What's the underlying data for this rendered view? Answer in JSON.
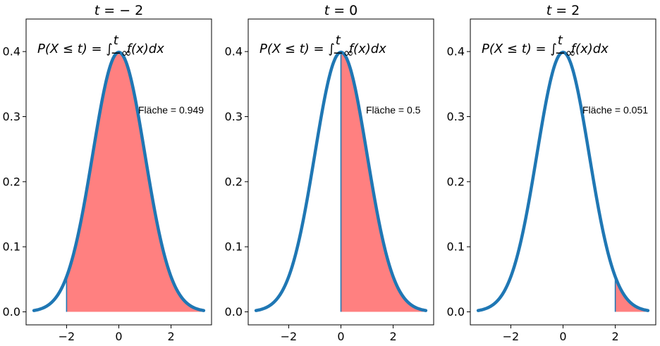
{
  "chart_data": [
    {
      "type": "area",
      "title_prefix": "t = ",
      "title_value": "− 2",
      "t": -2,
      "formula": {
        "lhs": "P(X ≤ t) = ∫",
        "upper": "t",
        "lower": "−∞",
        "rhs": "f(x)dx"
      },
      "area_label": "Fläche = 0.949",
      "shade_side": "right",
      "x_domain": [
        -3.25,
        3.25
      ],
      "xlim": [
        -3.55,
        3.55
      ],
      "ylim": [
        -0.02,
        0.45
      ],
      "xticks": [
        {
          "v": -2,
          "label": "−2"
        },
        {
          "v": 0,
          "label": "0"
        },
        {
          "v": 2,
          "label": "2"
        }
      ],
      "yticks": [
        {
          "v": 0.0,
          "label": "0.0"
        },
        {
          "v": 0.1,
          "label": "0.1"
        },
        {
          "v": 0.2,
          "label": "0.2"
        },
        {
          "v": 0.3,
          "label": "0.3"
        },
        {
          "v": 0.4,
          "label": "0.4"
        }
      ],
      "curve_color": "#1f77b4",
      "fill_color": "#ff8080"
    },
    {
      "type": "area",
      "title_prefix": "t = ",
      "title_value": "0",
      "t": 0,
      "formula": {
        "lhs": "P(X ≤ t) = ∫",
        "upper": "t",
        "lower": "−∞",
        "rhs": "f(x)dx"
      },
      "area_label": "Fläche = 0.5",
      "shade_side": "right",
      "x_domain": [
        -3.25,
        3.25
      ],
      "xlim": [
        -3.55,
        3.55
      ],
      "ylim": [
        -0.02,
        0.45
      ],
      "xticks": [
        {
          "v": -2,
          "label": "−2"
        },
        {
          "v": 0,
          "label": "0"
        },
        {
          "v": 2,
          "label": "2"
        }
      ],
      "yticks": [
        {
          "v": 0.0,
          "label": "0.0"
        },
        {
          "v": 0.1,
          "label": "0.1"
        },
        {
          "v": 0.2,
          "label": "0.2"
        },
        {
          "v": 0.3,
          "label": "0.3"
        },
        {
          "v": 0.4,
          "label": "0.4"
        }
      ],
      "curve_color": "#1f77b4",
      "fill_color": "#ff8080"
    },
    {
      "type": "area",
      "title_prefix": "t = ",
      "title_value": "2",
      "t": 2,
      "formula": {
        "lhs": "P(X ≤ t) = ∫",
        "upper": "t",
        "lower": "−∞",
        "rhs": "f(x)dx"
      },
      "area_label": "Fläche = 0.051",
      "shade_side": "right",
      "x_domain": [
        -3.25,
        3.25
      ],
      "xlim": [
        -3.55,
        3.55
      ],
      "ylim": [
        -0.02,
        0.45
      ],
      "xticks": [
        {
          "v": -2,
          "label": "−2"
        },
        {
          "v": 0,
          "label": "0"
        },
        {
          "v": 2,
          "label": "2"
        }
      ],
      "yticks": [
        {
          "v": 0.0,
          "label": "0.0"
        },
        {
          "v": 0.1,
          "label": "0.1"
        },
        {
          "v": 0.2,
          "label": "0.2"
        },
        {
          "v": 0.3,
          "label": "0.3"
        },
        {
          "v": 0.4,
          "label": "0.4"
        }
      ],
      "curve_color": "#1f77b4",
      "fill_color": "#ff8080"
    }
  ]
}
